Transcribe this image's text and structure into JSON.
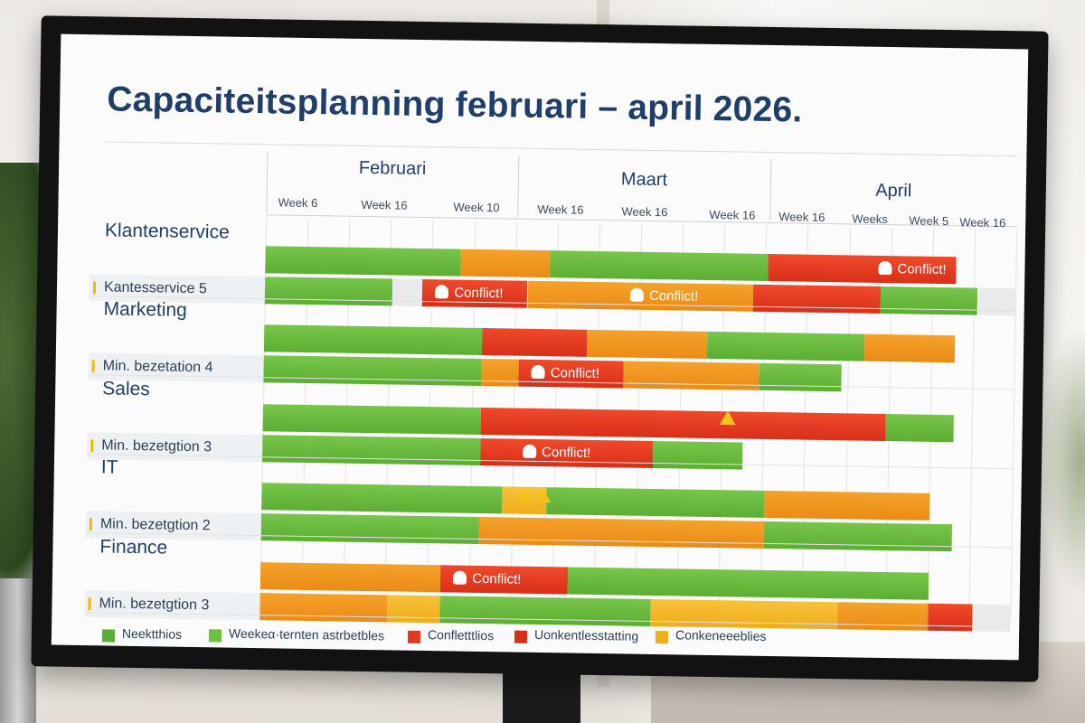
{
  "title": "Capaciteitsplanning februari – april 2026.",
  "months": [
    "Februari",
    "Maart",
    "April"
  ],
  "weeks": [
    "Week 6",
    "Week 16",
    "Week 10",
    "Week 16",
    "Week 16",
    "Week 16",
    "Week 16",
    "Weeks",
    "Week 5",
    "Week 16"
  ],
  "teams": [
    {
      "name": "Klantenservice",
      "min_label": "Kantesservice 5",
      "rows": [
        [
          [
            "green",
            0,
            26
          ],
          [
            "orange",
            26,
            38
          ],
          [
            "green",
            38,
            67
          ],
          [
            "red",
            67,
            92
          ]
        ],
        [
          [
            "green",
            0,
            17
          ],
          [
            "gray",
            17,
            21
          ],
          [
            "red",
            21,
            35
          ],
          [
            "orange",
            35,
            65
          ],
          [
            "red",
            65,
            82
          ],
          [
            "green",
            82,
            95
          ],
          [
            "gray",
            95,
            100
          ]
        ]
      ],
      "conflicts": [
        {
          "label": "Conflict!",
          "row": 0,
          "start": 80,
          "end": 92
        },
        {
          "label": "Conflict!",
          "row": 1,
          "start": 21,
          "end": 35
        },
        {
          "label": "Conflict!",
          "row": 1,
          "start": 47,
          "end": 57
        }
      ]
    },
    {
      "name": "Marketing",
      "min_label": "Min. bezetation 4",
      "rows": [
        [
          [
            "green",
            0,
            29
          ],
          [
            "red",
            29,
            43
          ],
          [
            "orange",
            43,
            59
          ],
          [
            "green",
            59,
            80
          ],
          [
            "orange",
            80,
            92
          ]
        ],
        [
          [
            "green",
            0,
            29
          ],
          [
            "orange",
            29,
            34
          ],
          [
            "red",
            34,
            48
          ],
          [
            "orange",
            48,
            66
          ],
          [
            "green",
            66,
            77
          ]
        ]
      ],
      "conflicts": [
        {
          "label": "Conflict!",
          "row": 1,
          "start": 34,
          "end": 48
        }
      ]
    },
    {
      "name": "Sales",
      "min_label": "Min. bezetgtion 3",
      "rows": [
        [
          [
            "green",
            0,
            29
          ],
          [
            "red",
            29,
            83
          ],
          [
            "green",
            83,
            92
          ]
        ],
        [
          [
            "green",
            0,
            29
          ],
          [
            "red",
            29,
            52
          ],
          [
            "green",
            52,
            64
          ]
        ]
      ],
      "conflicts": [
        {
          "label": "Conflict!",
          "row": 1,
          "start": 33,
          "end": 47
        }
      ]
    },
    {
      "name": "IT",
      "min_label": "Min. bezetgtion 2",
      "rows": [
        [
          [
            "green",
            0,
            32
          ],
          [
            "yellow",
            32,
            38
          ],
          [
            "green",
            38,
            67
          ],
          [
            "orange",
            67,
            89
          ]
        ],
        [
          [
            "green",
            0,
            29
          ],
          [
            "orange",
            29,
            67
          ],
          [
            "green",
            67,
            92
          ]
        ]
      ],
      "conflicts": []
    },
    {
      "name": "Finance",
      "min_label": "Min. bezetgtion 3",
      "rows": [
        [
          [
            "orange",
            0,
            24
          ],
          [
            "red",
            24,
            41
          ],
          [
            "green",
            41,
            89
          ]
        ],
        [
          [
            "orange",
            0,
            17
          ],
          [
            "yellow",
            17,
            24
          ],
          [
            "green",
            24,
            52
          ],
          [
            "yellow",
            52,
            77
          ],
          [
            "orange",
            77,
            89
          ],
          [
            "red",
            89,
            95
          ],
          [
            "gray",
            95,
            100
          ]
        ]
      ],
      "conflicts": [
        {
          "label": "Conflict!",
          "row": 0,
          "start": 24,
          "end": 41
        }
      ]
    }
  ],
  "legend": [
    {
      "label": "Neektthios",
      "color": "#5cae33"
    },
    {
      "label": "Weekeα·ternten astrbetbles",
      "color": "#6dbf3f"
    },
    {
      "label": "Confletttlios",
      "color": "#e03a22"
    },
    {
      "label": "Uonkentlesstatting",
      "color": "#d92f19"
    },
    {
      "label": "Conkeneeeblies",
      "color": "#f0ad1c"
    }
  ],
  "colors": {
    "green": "#5cae33",
    "orange": "#eb8b16",
    "red": "#d92f19",
    "yellow": "#f0ad1c",
    "title": "#1f3f6a"
  }
}
